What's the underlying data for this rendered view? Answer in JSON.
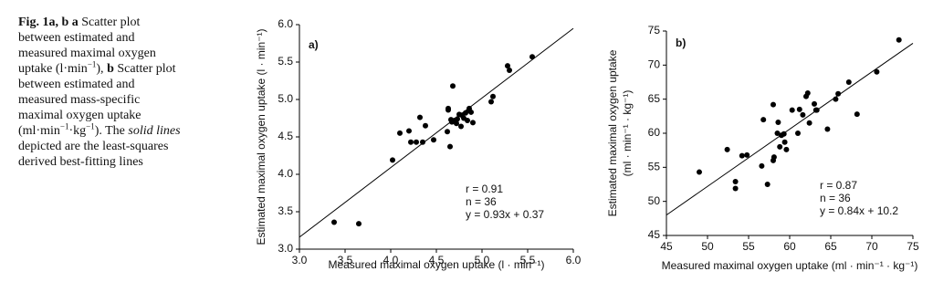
{
  "caption": {
    "segments": [
      "Fig. 1a, b",
      "a",
      "Scatter plot",
      "between estimated and",
      "measured maximal oxygen",
      "uptake (l·min",
      "−1",
      "), ",
      "b",
      "Scatter plot",
      "between estimated and",
      "measured mass-specific",
      "maximal oxygen uptake",
      "(ml·min",
      "−1",
      "·kg",
      "−1",
      "). The",
      "solid lines",
      "depicted are the least-squares",
      "derived best-fitting lines"
    ]
  },
  "chart_data": [
    {
      "type": "scatter",
      "panel_label": "a)",
      "xlabel": "Measured maximal oxygen uptake (l · min⁻¹)",
      "ylabel": [
        "Estimated maximal oxygen uptake (l · min⁻¹)"
      ],
      "annotations": [
        "r = 0.91",
        "n = 36",
        "y = 0.93x + 0.37"
      ],
      "color": "#000000",
      "x": [
        3.38,
        3.65,
        4.02,
        4.1,
        4.2,
        4.22,
        4.28,
        4.32,
        4.35,
        4.38,
        4.47,
        4.62,
        4.63,
        4.65,
        4.66,
        4.68,
        4.7,
        4.72,
        4.75,
        4.77,
        4.8,
        4.82,
        4.84,
        4.86,
        4.88,
        4.9,
        5.1,
        5.12,
        5.28,
        5.3,
        5.55,
        4.63,
        4.78,
        4.73,
        4.86,
        4.67
      ],
      "y": [
        3.36,
        3.34,
        4.19,
        4.55,
        4.58,
        4.43,
        4.43,
        4.76,
        4.43,
        4.65,
        4.46,
        4.57,
        4.88,
        4.37,
        4.73,
        5.18,
        4.72,
        4.68,
        4.8,
        4.64,
        4.75,
        4.82,
        4.72,
        4.88,
        4.83,
        4.69,
        4.97,
        5.04,
        5.45,
        5.39,
        5.57,
        4.86,
        4.79,
        4.74,
        4.85,
        4.7
      ],
      "fit_line": {
        "x": [
          3,
          6
        ],
        "y": [
          3.16,
          5.95
        ]
      },
      "xlim": [
        3,
        6
      ],
      "ylim": [
        3,
        6
      ],
      "xticks": [
        {
          "value": 3,
          "label": "3.0"
        },
        3.5,
        {
          "value": 4,
          "label": "4.0"
        },
        4.5,
        {
          "value": 5,
          "label": "5.0"
        },
        5.5,
        {
          "value": 6,
          "label": "6.0"
        }
      ],
      "yticks": [
        {
          "value": 3,
          "label": "3.0"
        },
        3.5,
        {
          "value": 4,
          "label": "4.0"
        },
        4.5,
        {
          "value": 5,
          "label": "5.0"
        },
        5.5,
        {
          "value": 6,
          "label": "6.0"
        }
      ]
    },
    {
      "type": "scatter",
      "panel_label": "b)",
      "xlabel": "Measured maximal oxygen uptake (ml · min⁻¹ · kg⁻¹)",
      "ylabel": [
        "Estimated maximal oxygen uptake",
        "(ml · min⁻¹ · kg⁻¹)"
      ],
      "annotations": [
        "r = 0.87",
        "n = 36",
        "y = 0.84x + 10.2"
      ],
      "color": "#000000",
      "x": [
        49,
        52.4,
        53.4,
        53.4,
        54.2,
        54.8,
        56.6,
        56.8,
        57.3,
        58,
        58.1,
        58,
        58.6,
        58.5,
        58.8,
        59,
        59.4,
        59.6,
        60.3,
        61,
        61.2,
        61.6,
        62,
        62.2,
        62.4,
        63,
        63.2,
        63.3,
        64.6,
        65.6,
        65.9,
        67.2,
        68.2,
        70.6,
        73.3,
        59.3
      ],
      "y": [
        54.3,
        57.6,
        51.9,
        52.9,
        56.7,
        56.8,
        55.2,
        62,
        52.5,
        56,
        56.5,
        64.2,
        61.6,
        60,
        58,
        59.7,
        58.7,
        57.6,
        63.4,
        60,
        63.5,
        62.7,
        65.4,
        65.9,
        61.5,
        64.3,
        63.4,
        63.4,
        60.6,
        65,
        65.8,
        67.5,
        62.8,
        69,
        73.7,
        59.9
      ],
      "fit_line": {
        "x": [
          45,
          75
        ],
        "y": [
          48,
          73.2
        ]
      },
      "xlim": [
        45,
        75
      ],
      "ylim": [
        45,
        75
      ],
      "xticks": [
        45,
        50,
        55,
        60,
        65,
        70,
        75
      ],
      "yticks": [
        45,
        50,
        55,
        60,
        65,
        70,
        75
      ]
    }
  ]
}
